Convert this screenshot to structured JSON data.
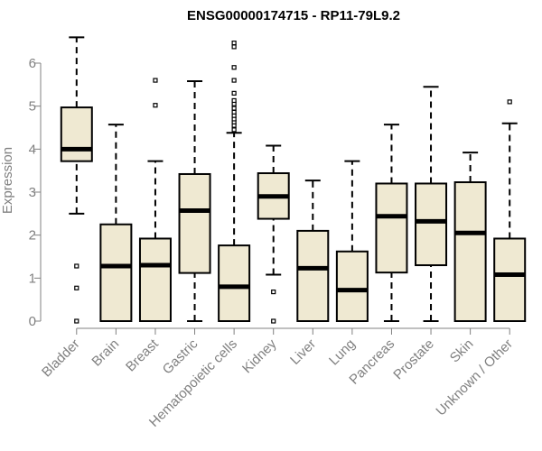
{
  "chart_data": {
    "type": "boxplot",
    "title": "ENSG00000174715 - RP11-79L9.2",
    "xlabel": "",
    "ylabel": "Expression",
    "ylim": [
      0,
      6.6
    ],
    "yticks": [
      0,
      1,
      2,
      3,
      4,
      5,
      6
    ],
    "categories": [
      "Bladder",
      "Brain",
      "Breast",
      "Gastric",
      "Hematopoietic cells",
      "Kidney",
      "Liver",
      "Lung",
      "Pancreas",
      "Prostate",
      "Skin",
      "Unknown / Other"
    ],
    "boxes": [
      {
        "whisker_low": 2.5,
        "q1": 3.72,
        "median": 4.0,
        "q3": 4.97,
        "whisker_high": 6.6,
        "outliers": [
          0,
          0.77,
          1.28
        ]
      },
      {
        "whisker_low": 0,
        "q1": 0,
        "median": 1.28,
        "q3": 2.25,
        "whisker_high": 4.57,
        "outliers": []
      },
      {
        "whisker_low": 0,
        "q1": 0,
        "median": 1.3,
        "q3": 1.92,
        "whisker_high": 3.72,
        "outliers": [
          5.02,
          5.6
        ]
      },
      {
        "whisker_low": 0,
        "q1": 1.12,
        "median": 2.57,
        "q3": 3.42,
        "whisker_high": 5.58,
        "outliers": []
      },
      {
        "whisker_low": 0,
        "q1": 0,
        "median": 0.8,
        "q3": 1.76,
        "whisker_high": 4.38,
        "outliers": [
          4.45,
          4.55,
          4.63,
          4.7,
          4.78,
          4.86,
          4.95,
          5.05,
          5.13,
          5.3,
          5.6,
          5.9,
          6.38,
          6.47
        ]
      },
      {
        "whisker_low": 1.08,
        "q1": 2.38,
        "median": 2.9,
        "q3": 3.44,
        "whisker_high": 4.08,
        "outliers": [
          0,
          0.68
        ]
      },
      {
        "whisker_low": 0,
        "q1": 0,
        "median": 1.23,
        "q3": 2.1,
        "whisker_high": 3.27,
        "outliers": []
      },
      {
        "whisker_low": 0,
        "q1": 0,
        "median": 0.72,
        "q3": 1.62,
        "whisker_high": 3.72,
        "outliers": []
      },
      {
        "whisker_low": 0,
        "q1": 1.13,
        "median": 2.44,
        "q3": 3.2,
        "whisker_high": 4.57,
        "outliers": []
      },
      {
        "whisker_low": 0,
        "q1": 1.3,
        "median": 2.32,
        "q3": 3.2,
        "whisker_high": 5.45,
        "outliers": []
      },
      {
        "whisker_low": 0,
        "q1": 0,
        "median": 2.05,
        "q3": 3.23,
        "whisker_high": 3.92,
        "outliers": []
      },
      {
        "whisker_low": 0,
        "q1": 0,
        "median": 1.08,
        "q3": 1.92,
        "whisker_high": 4.6,
        "outliers": [
          5.1
        ]
      }
    ],
    "grid": false,
    "legend": "none"
  },
  "colors": {
    "box_fill": "#efe9d2",
    "box_stroke": "#000000",
    "axis": "#808080",
    "text_muted": "#808080"
  }
}
